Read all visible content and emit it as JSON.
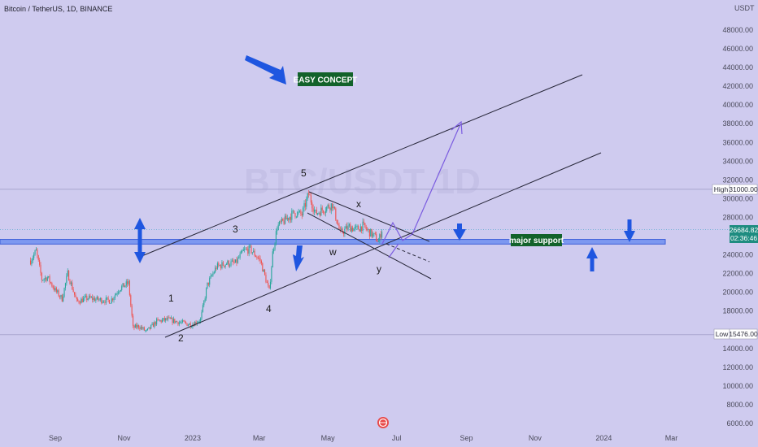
{
  "header": {
    "title": "Bitcoin / TetherUS, 1D, BINANCE",
    "currency": "USDT"
  },
  "chart_data": {
    "type": "candlestick",
    "title": "Bitcoin / TetherUS, 1D, BINANCE",
    "y_unit": "USDT",
    "ylim": [
      5000,
      50000
    ],
    "y_ticks": [
      "48000.00",
      "46000.00",
      "44000.00",
      "42000.00",
      "40000.00",
      "38000.00",
      "36000.00",
      "34000.00",
      "32000.00",
      "30000.00",
      "28000.00",
      "24000.00",
      "22000.00",
      "20000.00",
      "18000.00",
      "14000.00",
      "12000.00",
      "10000.00",
      "8000.00",
      "6000.00"
    ],
    "x_ticks": [
      "Sep",
      "Nov",
      "2023",
      "Mar",
      "May",
      "Jul",
      "Sep",
      "Nov",
      "2024",
      "Mar"
    ],
    "price_markers": [
      {
        "label": "High",
        "value": "31000.00",
        "price": 31000
      },
      {
        "label": "Low",
        "value": "15476.00",
        "price": 15476
      }
    ],
    "current_price": {
      "value": "26684.82",
      "countdown": "02:36:46",
      "price": 26684.82
    },
    "support_zone": {
      "low": 25150,
      "high": 25650
    },
    "price_path": [
      [
        "2022-08-10",
        23400
      ],
      [
        "2022-08-15",
        24400
      ],
      [
        "2022-08-20",
        21400
      ],
      [
        "2022-08-25",
        21600
      ],
      [
        "2022-09-01",
        20200
      ],
      [
        "2022-09-07",
        19300
      ],
      [
        "2022-09-12",
        22000
      ],
      [
        "2022-09-20",
        19000
      ],
      [
        "2022-09-30",
        19400
      ],
      [
        "2022-10-10",
        19200
      ],
      [
        "2022-10-20",
        19100
      ],
      [
        "2022-10-28",
        20400
      ],
      [
        "2022-11-05",
        21000
      ],
      [
        "2022-11-09",
        16200
      ],
      [
        "2022-11-14",
        16400
      ],
      [
        "2022-11-21",
        15800
      ],
      [
        "2022-11-30",
        16900
      ],
      [
        "2022-12-10",
        17100
      ],
      [
        "2022-12-20",
        16800
      ],
      [
        "2022-12-31",
        16550
      ],
      [
        "2023-01-08",
        17100
      ],
      [
        "2023-01-14",
        20800
      ],
      [
        "2023-01-22",
        22700
      ],
      [
        "2023-01-31",
        23100
      ],
      [
        "2023-02-08",
        23100
      ],
      [
        "2023-02-15",
        24400
      ],
      [
        "2023-02-21",
        24600
      ],
      [
        "2023-03-02",
        23400
      ],
      [
        "2023-03-10",
        20100
      ],
      [
        "2023-03-13",
        24200
      ],
      [
        "2023-03-17",
        27000
      ],
      [
        "2023-03-25",
        27800
      ],
      [
        "2023-04-01",
        28500
      ],
      [
        "2023-04-08",
        28300
      ],
      [
        "2023-04-14",
        30500
      ],
      [
        "2023-04-20",
        28400
      ],
      [
        "2023-04-26",
        28800
      ],
      [
        "2023-05-05",
        29400
      ],
      [
        "2023-05-12",
        26300
      ],
      [
        "2023-05-20",
        27000
      ],
      [
        "2023-05-26",
        26700
      ],
      [
        "2023-06-01",
        27100
      ],
      [
        "2023-06-07",
        26400
      ],
      [
        "2023-06-12",
        25900
      ],
      [
        "2023-06-15",
        25400
      ],
      [
        "2023-06-18",
        26700
      ]
    ],
    "wave_labels": [
      "1",
      "2",
      "3",
      "4",
      "5",
      "w",
      "x",
      "y"
    ],
    "annotations": [
      "EASY CONCEPT",
      "major support"
    ]
  },
  "watermark": "BTC/USDT 1D",
  "colors": {
    "background": "#cfcbef",
    "bull": "#26a69a",
    "bear": "#ef5350",
    "support": "#6f8ff0",
    "arrow": "#1f56e0",
    "box": "#12622a",
    "projection": "#7b5ce0"
  },
  "icons": {
    "scroll_button": "tradingview-logo-icon"
  }
}
